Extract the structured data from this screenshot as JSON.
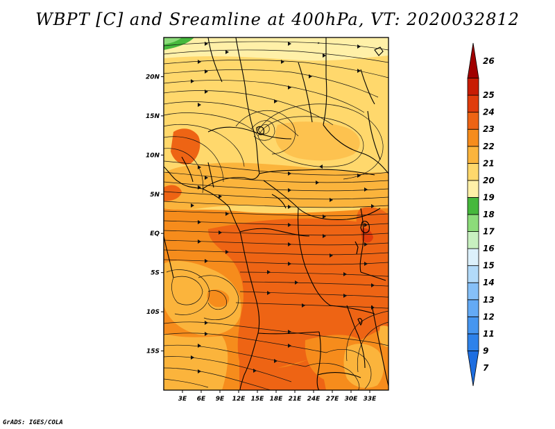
{
  "title": "WBPT [C] and Sreamline at 400hPa, VT: 2020032812",
  "credit": "GrADS: IGES/COLA",
  "map": {
    "lon_range": [
      0,
      36
    ],
    "lat_range": [
      -20,
      25
    ],
    "lat_ticks": [
      {
        "value": 20,
        "label": "20N"
      },
      {
        "value": 15,
        "label": "15N"
      },
      {
        "value": 10,
        "label": "10N"
      },
      {
        "value": 5,
        "label": "5N"
      },
      {
        "value": 0,
        "label": "EQ"
      },
      {
        "value": -5,
        "label": "5S"
      },
      {
        "value": -10,
        "label": "10S"
      },
      {
        "value": -15,
        "label": "15S"
      }
    ],
    "lon_ticks": [
      {
        "value": 3,
        "label": "3E"
      },
      {
        "value": 6,
        "label": "6E"
      },
      {
        "value": 9,
        "label": "9E"
      },
      {
        "value": 12,
        "label": "12E"
      },
      {
        "value": 15,
        "label": "15E"
      },
      {
        "value": 18,
        "label": "18E"
      },
      {
        "value": 21,
        "label": "21E"
      },
      {
        "value": 24,
        "label": "24E"
      },
      {
        "value": 27,
        "label": "27E"
      },
      {
        "value": 30,
        "label": "30E"
      },
      {
        "value": 33,
        "label": "33E"
      }
    ]
  },
  "colorbar": {
    "labels": [
      "7",
      "9",
      "11",
      "12",
      "13",
      "14",
      "15",
      "16",
      "17",
      "18",
      "19",
      "20",
      "21",
      "22",
      "23",
      "24",
      "25",
      "26"
    ],
    "colors": [
      "#1e6ee0",
      "#2e82ea",
      "#4696f0",
      "#64aaf5",
      "#86c0f8",
      "#b2daf9",
      "#dcf0fb",
      "#c8f0c0",
      "#8cdc7a",
      "#46b83c",
      "#fff0a8",
      "#ffd86c",
      "#fbb43c",
      "#f68c1c",
      "#ee6414",
      "#e03c0c",
      "#c81c04",
      "#a00000"
    ]
  }
}
